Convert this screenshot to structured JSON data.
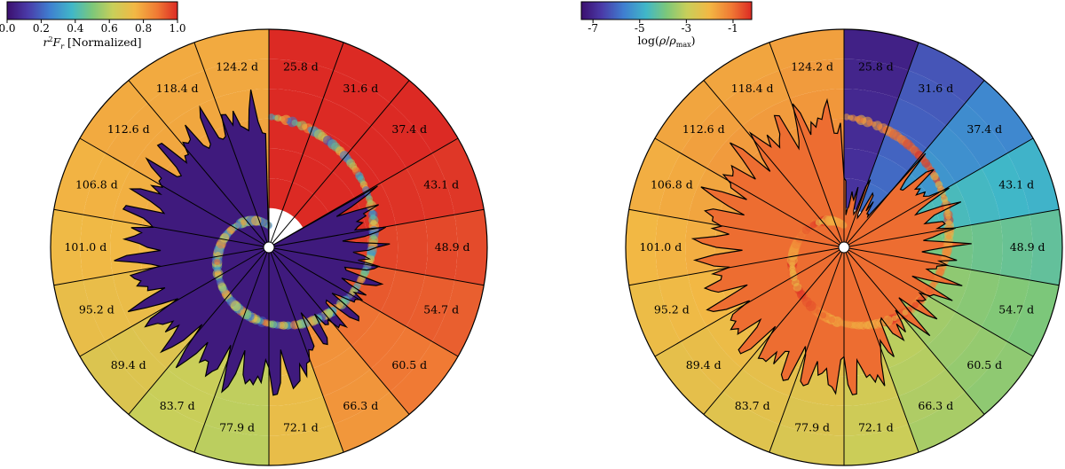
{
  "chart_data": [
    {
      "type": "polar-wedge-map",
      "colorbar": {
        "ticks": [
          "0.0",
          "0.2",
          "0.4",
          "0.6",
          "0.8",
          "1.0"
        ],
        "tick_values": [
          0.0,
          0.2,
          0.4,
          0.6,
          0.8,
          1.0
        ],
        "range": [
          0.0,
          1.0
        ],
        "title_main": "r",
        "title_sup": "2",
        "title_var": "F",
        "title_sub": "r",
        "title_suffix": " [Normalized]"
      },
      "wedges": [
        "25.8 d",
        "31.6 d",
        "37.4 d",
        "43.1 d",
        "48.9 d",
        "54.7 d",
        "60.5 d",
        "66.3 d",
        "72.1 d",
        "77.9 d",
        "83.7 d",
        "89.4 d",
        "95.2 d",
        "101.0 d",
        "106.8 d",
        "112.6 d",
        "118.4 d",
        "124.2 d"
      ],
      "wedge_levels": [
        1.0,
        1.0,
        1.0,
        0.98,
        0.95,
        0.92,
        0.88,
        0.82,
        0.72,
        0.6,
        0.62,
        0.68,
        0.72,
        0.74,
        0.76,
        0.78,
        0.78,
        0.78
      ],
      "inner_level": 0.03
    },
    {
      "type": "polar-wedge-map",
      "colorbar": {
        "ticks": [
          "-7",
          "-5",
          "-3",
          "-1"
        ],
        "tick_values": [
          -7,
          -5,
          -3,
          -1
        ],
        "range": [
          -7.5,
          -0.2
        ],
        "title_prefix": "log(",
        "title_rho": "ρ",
        "title_slash": "/",
        "title_rho2": "ρ",
        "title_sub": "max",
        "title_suffix": ")"
      },
      "wedges": [
        "25.8 d",
        "31.6 d",
        "37.4 d",
        "43.1 d",
        "48.9 d",
        "54.7 d",
        "60.5 d",
        "66.3 d",
        "72.1 d",
        "77.9 d",
        "83.7 d",
        "89.4 d",
        "95.2 d",
        "101.0 d",
        "106.8 d",
        "112.6 d",
        "118.4 d",
        "124.2 d"
      ],
      "wedge_levels": [
        0.1,
        0.22,
        0.32,
        0.42,
        0.5,
        0.55,
        0.58,
        0.62,
        0.68,
        0.72,
        0.74,
        0.76,
        0.78,
        0.8,
        0.82,
        0.84,
        0.84,
        0.85
      ],
      "inner_level": 0.9
    }
  ]
}
